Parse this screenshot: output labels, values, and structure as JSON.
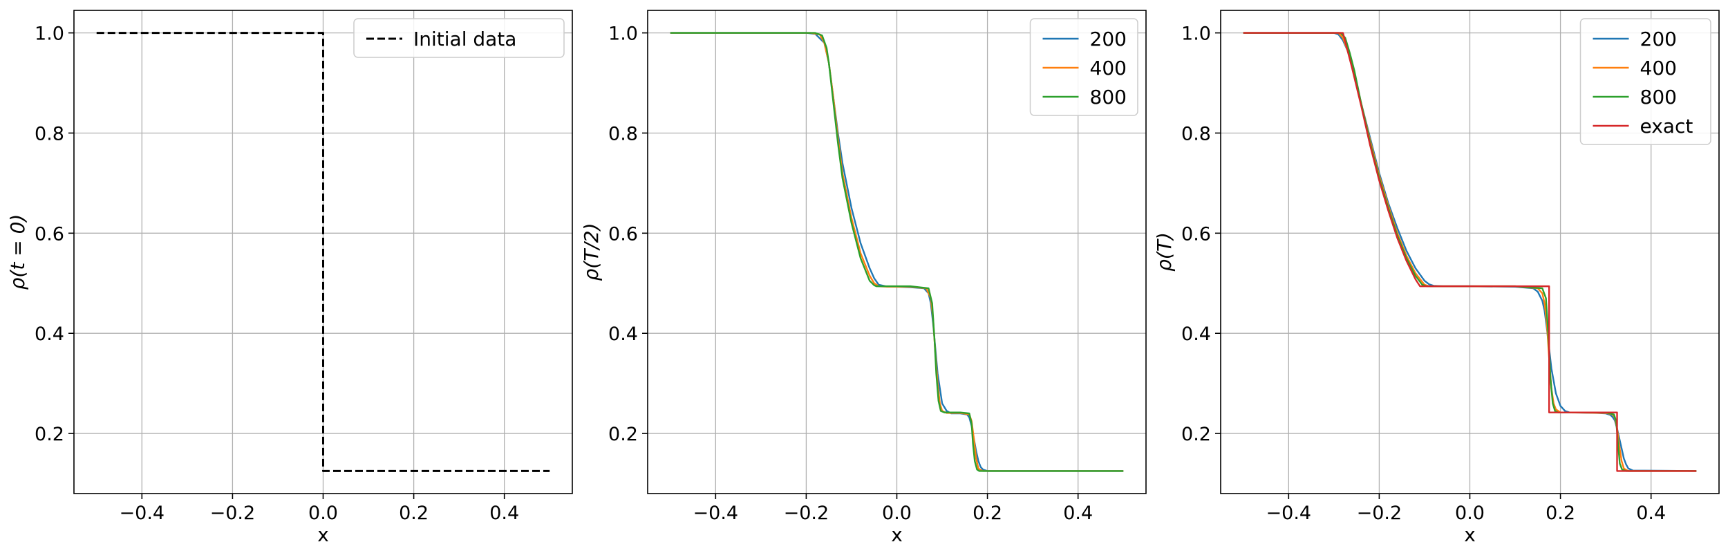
{
  "chart_data": [
    {
      "type": "line",
      "xlabel": "x",
      "ylabel": "ρ(t = 0)",
      "xlim": [
        -0.55,
        0.55
      ],
      "ylim": [
        0.08,
        1.045
      ],
      "xticks": [
        -0.4,
        -0.2,
        0.0,
        0.2,
        0.4
      ],
      "xtick_labels": [
        "−0.4",
        "−0.2",
        "0.0",
        "0.2",
        "0.4"
      ],
      "yticks": [
        0.2,
        0.4,
        0.6,
        0.8,
        1.0
      ],
      "ytick_labels": [
        "0.2",
        "0.4",
        "0.6",
        "0.8",
        "1.0"
      ],
      "grid": true,
      "legend": "top-right",
      "series": [
        {
          "name": "Initial data",
          "color": "#000000",
          "dash": "dashed",
          "x": [
            -0.5,
            0.0,
            0.0,
            0.5
          ],
          "y": [
            1.0,
            1.0,
            0.125,
            0.125
          ]
        }
      ]
    },
    {
      "type": "line",
      "xlabel": "x",
      "ylabel": "ρ(T/2)",
      "xlim": [
        -0.55,
        0.55
      ],
      "ylim": [
        0.08,
        1.045
      ],
      "xticks": [
        -0.4,
        -0.2,
        0.0,
        0.2,
        0.4
      ],
      "xtick_labels": [
        "−0.4",
        "−0.2",
        "0.0",
        "0.2",
        "0.4"
      ],
      "yticks": [
        0.2,
        0.4,
        0.6,
        0.8,
        1.0
      ],
      "ytick_labels": [
        "0.2",
        "0.4",
        "0.6",
        "0.8",
        "1.0"
      ],
      "grid": true,
      "legend": "top-right",
      "series": [
        {
          "name": "200",
          "color": "#1f77b4",
          "x": [
            -0.5,
            -0.2,
            -0.18,
            -0.16,
            -0.15,
            -0.14,
            -0.13,
            -0.12,
            -0.1,
            -0.08,
            -0.06,
            -0.05,
            -0.04,
            -0.02,
            0.0,
            0.03,
            0.06,
            0.07,
            0.075,
            0.08,
            0.085,
            0.09,
            0.1,
            0.11,
            0.12,
            0.14,
            0.155,
            0.16,
            0.165,
            0.17,
            0.175,
            0.18,
            0.185,
            0.19,
            0.2,
            0.5
          ],
          "y": [
            1.0,
            1.0,
            0.998,
            0.98,
            0.94,
            0.87,
            0.8,
            0.74,
            0.65,
            0.58,
            0.53,
            0.51,
            0.497,
            0.493,
            0.493,
            0.492,
            0.49,
            0.48,
            0.46,
            0.42,
            0.37,
            0.32,
            0.26,
            0.245,
            0.24,
            0.24,
            0.238,
            0.232,
            0.215,
            0.19,
            0.165,
            0.145,
            0.133,
            0.128,
            0.125,
            0.125
          ]
        },
        {
          "name": "400",
          "color": "#ff7f0e",
          "x": [
            -0.5,
            -0.19,
            -0.17,
            -0.16,
            -0.15,
            -0.14,
            -0.13,
            -0.12,
            -0.1,
            -0.08,
            -0.06,
            -0.05,
            -0.04,
            -0.02,
            0.0,
            0.03,
            0.065,
            0.075,
            0.08,
            0.085,
            0.09,
            0.095,
            0.1,
            0.11,
            0.14,
            0.16,
            0.165,
            0.17,
            0.175,
            0.18,
            0.19,
            0.5
          ],
          "y": [
            1.0,
            1.0,
            0.997,
            0.98,
            0.94,
            0.87,
            0.79,
            0.72,
            0.63,
            0.56,
            0.515,
            0.5,
            0.494,
            0.493,
            0.493,
            0.493,
            0.49,
            0.47,
            0.43,
            0.36,
            0.3,
            0.26,
            0.245,
            0.241,
            0.241,
            0.238,
            0.225,
            0.19,
            0.15,
            0.13,
            0.125,
            0.125
          ]
        },
        {
          "name": "800",
          "color": "#2ca02c",
          "x": [
            -0.5,
            -0.18,
            -0.165,
            -0.155,
            -0.15,
            -0.14,
            -0.13,
            -0.12,
            -0.1,
            -0.08,
            -0.06,
            -0.05,
            -0.045,
            -0.02,
            0.0,
            0.03,
            0.07,
            0.078,
            0.083,
            0.087,
            0.092,
            0.097,
            0.105,
            0.14,
            0.16,
            0.165,
            0.168,
            0.172,
            0.177,
            0.182,
            0.5
          ],
          "y": [
            1.0,
            1.0,
            0.995,
            0.97,
            0.94,
            0.86,
            0.78,
            0.71,
            0.62,
            0.55,
            0.505,
            0.496,
            0.494,
            0.494,
            0.494,
            0.494,
            0.49,
            0.46,
            0.39,
            0.32,
            0.265,
            0.245,
            0.242,
            0.242,
            0.24,
            0.22,
            0.18,
            0.145,
            0.128,
            0.125,
            0.125
          ]
        }
      ]
    },
    {
      "type": "line",
      "xlabel": "x",
      "ylabel": "ρ(T)",
      "xlim": [
        -0.55,
        0.55
      ],
      "ylim": [
        0.08,
        1.045
      ],
      "xticks": [
        -0.4,
        -0.2,
        0.0,
        0.2,
        0.4
      ],
      "xtick_labels": [
        "−0.4",
        "−0.2",
        "0.0",
        "0.2",
        "0.4"
      ],
      "yticks": [
        0.2,
        0.4,
        0.6,
        0.8,
        1.0
      ],
      "ytick_labels": [
        "0.2",
        "0.4",
        "0.6",
        "0.8",
        "1.0"
      ],
      "grid": true,
      "legend": "top-right",
      "series": [
        {
          "name": "200",
          "color": "#1f77b4",
          "x": [
            -0.5,
            -0.3,
            -0.29,
            -0.28,
            -0.27,
            -0.26,
            -0.24,
            -0.22,
            -0.2,
            -0.18,
            -0.16,
            -0.14,
            -0.12,
            -0.1,
            -0.09,
            -0.08,
            -0.06,
            0.0,
            0.1,
            0.14,
            0.15,
            0.16,
            0.165,
            0.17,
            0.175,
            0.18,
            0.19,
            0.2,
            0.21,
            0.22,
            0.28,
            0.3,
            0.31,
            0.315,
            0.32,
            0.325,
            0.33,
            0.335,
            0.34,
            0.345,
            0.35,
            0.36,
            0.5
          ],
          "y": [
            1.0,
            1.0,
            0.997,
            0.985,
            0.965,
            0.935,
            0.86,
            0.79,
            0.72,
            0.66,
            0.61,
            0.565,
            0.53,
            0.505,
            0.498,
            0.495,
            0.494,
            0.494,
            0.493,
            0.49,
            0.483,
            0.465,
            0.445,
            0.41,
            0.37,
            0.33,
            0.28,
            0.255,
            0.245,
            0.242,
            0.241,
            0.24,
            0.237,
            0.233,
            0.226,
            0.21,
            0.19,
            0.17,
            0.15,
            0.138,
            0.13,
            0.126,
            0.125
          ]
        },
        {
          "name": "400",
          "color": "#ff7f0e",
          "x": [
            -0.5,
            -0.29,
            -0.28,
            -0.27,
            -0.26,
            -0.24,
            -0.22,
            -0.2,
            -0.18,
            -0.16,
            -0.14,
            -0.12,
            -0.1,
            -0.09,
            0.0,
            0.1,
            0.15,
            0.16,
            0.165,
            0.17,
            0.175,
            0.18,
            0.185,
            0.19,
            0.2,
            0.3,
            0.315,
            0.32,
            0.325,
            0.33,
            0.335,
            0.34,
            0.35,
            0.5
          ],
          "y": [
            1.0,
            1.0,
            0.99,
            0.965,
            0.935,
            0.86,
            0.785,
            0.715,
            0.655,
            0.6,
            0.555,
            0.52,
            0.497,
            0.494,
            0.494,
            0.494,
            0.49,
            0.48,
            0.46,
            0.42,
            0.35,
            0.29,
            0.26,
            0.248,
            0.242,
            0.241,
            0.238,
            0.232,
            0.21,
            0.175,
            0.145,
            0.13,
            0.125,
            0.125
          ]
        },
        {
          "name": "800",
          "color": "#2ca02c",
          "x": [
            -0.5,
            -0.285,
            -0.275,
            -0.265,
            -0.255,
            -0.24,
            -0.22,
            -0.2,
            -0.18,
            -0.16,
            -0.14,
            -0.12,
            -0.105,
            -0.095,
            0.0,
            0.1,
            0.16,
            0.168,
            0.173,
            0.178,
            0.183,
            0.188,
            0.195,
            0.3,
            0.318,
            0.323,
            0.327,
            0.331,
            0.336,
            0.345,
            0.5
          ],
          "y": [
            1.0,
            1.0,
            0.99,
            0.96,
            0.925,
            0.86,
            0.78,
            0.71,
            0.65,
            0.595,
            0.55,
            0.515,
            0.497,
            0.494,
            0.494,
            0.494,
            0.49,
            0.47,
            0.4,
            0.31,
            0.26,
            0.245,
            0.242,
            0.242,
            0.238,
            0.225,
            0.18,
            0.14,
            0.128,
            0.125,
            0.125
          ]
        },
        {
          "name": "exact",
          "color": "#d62728",
          "x": [
            -0.5,
            -0.28,
            -0.26,
            -0.24,
            -0.22,
            -0.2,
            -0.18,
            -0.16,
            -0.14,
            -0.12,
            -0.11,
            -0.11,
            0.175,
            0.175,
            0.325,
            0.325,
            0.5
          ],
          "y": [
            1.0,
            1.0,
            0.93,
            0.855,
            0.775,
            0.705,
            0.645,
            0.59,
            0.545,
            0.508,
            0.494,
            0.494,
            0.494,
            0.242,
            0.242,
            0.125,
            0.125
          ]
        }
      ]
    }
  ]
}
